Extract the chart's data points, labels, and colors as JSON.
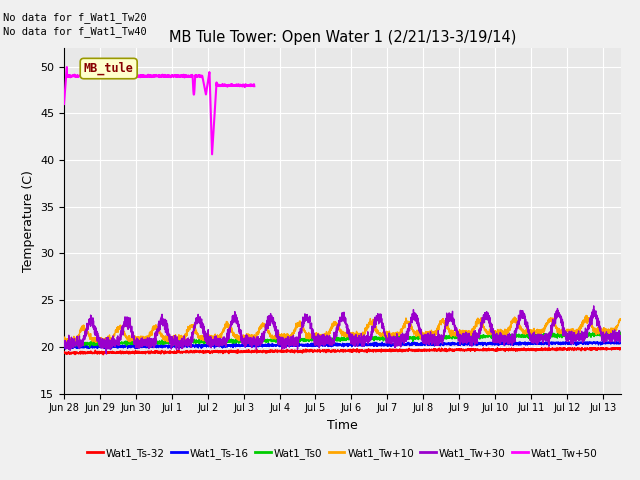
{
  "title": "MB Tule Tower: Open Water 1 (2/21/13-3/19/14)",
  "xlabel": "Time",
  "ylabel": "Temperature (C)",
  "annotation1": "No data for f_Wat1_Tw20",
  "annotation2": "No data for f_Wat1_Tw40",
  "ylim": [
    15,
    52
  ],
  "yticks": [
    15,
    20,
    25,
    30,
    35,
    40,
    45,
    50
  ],
  "xlim": [
    0,
    15.5
  ],
  "xtick_positions": [
    0,
    1,
    2,
    3,
    4,
    5,
    6,
    7,
    8,
    9,
    10,
    11,
    12,
    13,
    14,
    15
  ],
  "xtick_labels": [
    "Jun 28",
    "Jun 29",
    "Jun 30",
    "Jul 1",
    "Jul 2",
    "Jul 3",
    "Jul 4",
    "Jul 5",
    "Jul 6",
    "Jul 7",
    "Jul 8",
    "Jul 9",
    "Jul 10",
    "Jul 11",
    "Jul 12",
    "Jul 13"
  ],
  "fig_bg": "#f0f0f0",
  "ax_bg": "#e8e8e8",
  "grid_color": "#ffffff",
  "legend_labels": [
    "Wat1_Ts-32",
    "Wat1_Ts-16",
    "Wat1_Ts0",
    "Wat1_Tw+10",
    "Wat1_Tw+30",
    "Wat1_Tw+50"
  ],
  "legend_colors": [
    "#ff0000",
    "#0000ff",
    "#00cc00",
    "#ffa500",
    "#9900cc",
    "#ff00ff"
  ],
  "mb_tule_color": "#ff00ff",
  "mb_tule_label": "MB_tule",
  "mb_tule_bbox_facecolor": "#ffffcc",
  "mb_tule_bbox_edgecolor": "#999900",
  "mb_tule_text_color": "#880000"
}
